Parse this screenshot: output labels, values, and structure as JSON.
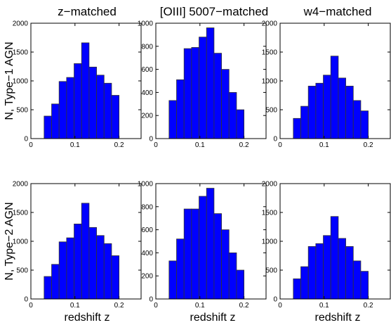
{
  "titles": [
    "z−matched",
    "[OIII] 5007−matched",
    "w4−matched"
  ],
  "row_labels": [
    "N, Type−1 AGN",
    "N, Type−2 AGN"
  ],
  "xlabel": "redshift z",
  "colors": {
    "bar_fill": "#0000ff",
    "bar_edge": "#333333",
    "axes": "#000000"
  },
  "chart_data": [
    {
      "type": "bar",
      "title": "z−matched",
      "ylabel": "N, Type−1 AGN",
      "xlabel": "",
      "xlim": [
        0,
        0.25
      ],
      "ylim": [
        0,
        2000
      ],
      "xticks": [
        0,
        0.1,
        0.2
      ],
      "yticks": [
        0,
        500,
        1000,
        1500,
        2000
      ],
      "bin_width": 0.017,
      "bins": [
        0.03,
        0.047,
        0.064,
        0.081,
        0.098,
        0.115,
        0.132,
        0.149,
        0.166,
        0.183
      ],
      "values": [
        390,
        600,
        990,
        1060,
        1300,
        1660,
        1240,
        1100,
        960,
        750
      ]
    },
    {
      "type": "bar",
      "title": "[OIII] 5007−matched",
      "ylabel": "",
      "xlabel": "",
      "xlim": [
        0,
        0.25
      ],
      "ylim": [
        0,
        1000
      ],
      "xticks": [
        0,
        0.1,
        0.2
      ],
      "yticks": [
        0,
        200,
        400,
        600,
        800,
        1000
      ],
      "bin_width": 0.017,
      "bins": [
        0.03,
        0.047,
        0.064,
        0.081,
        0.098,
        0.115,
        0.132,
        0.149,
        0.166,
        0.183
      ],
      "values": [
        330,
        510,
        780,
        790,
        880,
        960,
        740,
        600,
        400,
        250
      ]
    },
    {
      "type": "bar",
      "title": "w4−matched",
      "ylabel": "",
      "xlabel": "",
      "xlim": [
        0,
        0.25
      ],
      "ylim": [
        0,
        2000
      ],
      "xticks": [
        0,
        0.1,
        0.2
      ],
      "yticks": [
        0,
        500,
        1000,
        1500,
        2000
      ],
      "bin_width": 0.017,
      "bins": [
        0.03,
        0.047,
        0.064,
        0.081,
        0.098,
        0.115,
        0.132,
        0.149,
        0.166,
        0.183
      ],
      "values": [
        350,
        560,
        910,
        960,
        1100,
        1430,
        1050,
        910,
        660,
        480
      ]
    },
    {
      "type": "bar",
      "title": "",
      "ylabel": "N, Type−2 AGN",
      "xlabel": "redshift z",
      "xlim": [
        0,
        0.25
      ],
      "ylim": [
        0,
        2000
      ],
      "xticks": [
        0,
        0.1,
        0.2
      ],
      "yticks": [
        0,
        500,
        1000,
        1500,
        2000
      ],
      "bin_width": 0.017,
      "bins": [
        0.03,
        0.047,
        0.064,
        0.081,
        0.098,
        0.115,
        0.132,
        0.149,
        0.166,
        0.183
      ],
      "values": [
        390,
        600,
        990,
        1060,
        1300,
        1660,
        1240,
        1100,
        960,
        750
      ]
    },
    {
      "type": "bar",
      "title": "",
      "ylabel": "",
      "xlabel": "redshift z",
      "xlim": [
        0,
        0.25
      ],
      "ylim": [
        0,
        1000
      ],
      "xticks": [
        0,
        0.1,
        0.2
      ],
      "yticks": [
        0,
        200,
        400,
        600,
        800,
        1000
      ],
      "bin_width": 0.017,
      "bins": [
        0.03,
        0.047,
        0.064,
        0.081,
        0.098,
        0.115,
        0.132,
        0.149,
        0.166,
        0.183
      ],
      "values": [
        330,
        520,
        780,
        780,
        890,
        960,
        740,
        600,
        400,
        250
      ]
    },
    {
      "type": "bar",
      "title": "",
      "ylabel": "",
      "xlabel": "redshift z",
      "xlim": [
        0,
        0.25
      ],
      "ylim": [
        0,
        2000
      ],
      "xticks": [
        0,
        0.1,
        0.2
      ],
      "yticks": [
        0,
        500,
        1000,
        1500,
        2000
      ],
      "bin_width": 0.017,
      "bins": [
        0.03,
        0.047,
        0.064,
        0.081,
        0.098,
        0.115,
        0.132,
        0.149,
        0.166,
        0.183
      ],
      "values": [
        350,
        560,
        910,
        960,
        1100,
        1430,
        1050,
        910,
        660,
        480
      ]
    }
  ]
}
